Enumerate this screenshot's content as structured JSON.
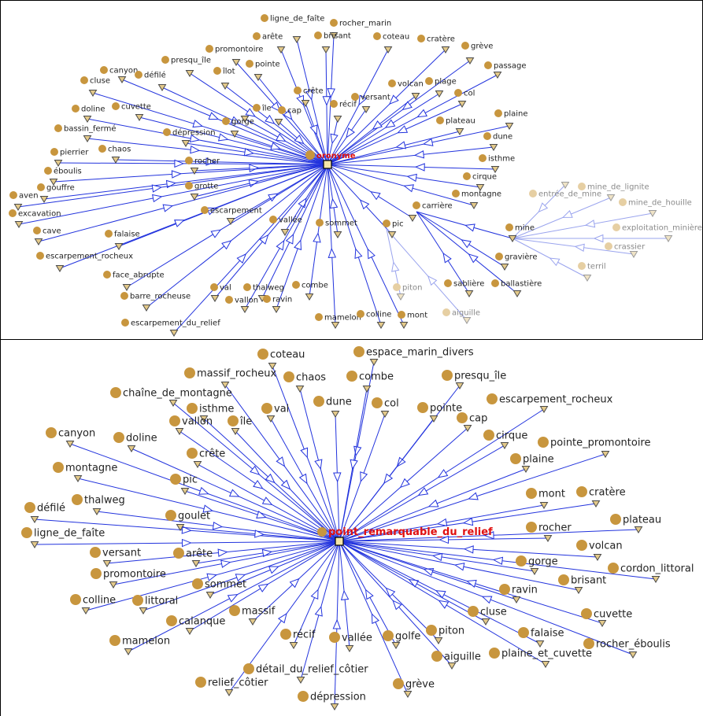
{
  "colors": {
    "node": "#c8963e",
    "node_faded": "#e6cfa3",
    "edge": "#2233dd",
    "edge_faded": "#9aa4ee",
    "hub_label": "#e01010",
    "label": "#222222",
    "label_faded": "#8a8a8a"
  },
  "icons": {
    "hub": "square-hub-icon",
    "leaf": "triangle-marker-icon",
    "node": "circle-node-icon"
  },
  "top": {
    "hub_label": "oronyme",
    "nodes": [
      "ligne_de_faîte",
      "rocher_marin",
      "arête",
      "brisant",
      "coteau",
      "cratère",
      "grève",
      "promontoire",
      "passage",
      "presqu_île",
      "canyon",
      "pointe",
      "îlot",
      "cluse",
      "défilé",
      "crête",
      "volcan",
      "plage",
      "col",
      "récif",
      "versant",
      "cap",
      "île",
      "cuvette",
      "doline",
      "gorge",
      "plaine",
      "plateau",
      "dépression",
      "bassin_fermé",
      "dune",
      "chaos",
      "pierrier",
      "isthme",
      "rocher",
      "éboulis",
      "cirque",
      "gouffre",
      "grotte",
      "aven",
      "carrière",
      "montagne",
      "excavation",
      "escarpement",
      "vallée",
      "sommet",
      "pic",
      "cave",
      "falaise",
      "mine",
      "escarpement_rocheux",
      "gravière",
      "face_abrupte",
      "val",
      "thalweg",
      "combe",
      "ballastière",
      "sablière",
      "barre_rocheuse",
      "vallon",
      "ravin",
      "mamelon",
      "colline",
      "mont",
      "escarpement_du_relief"
    ],
    "faded_nodes": [
      "entrée_de_mine",
      "mine_de_lignite",
      "mine_de_houille",
      "exploitation_minière",
      "crassier",
      "terril",
      "piton",
      "aiguille"
    ]
  },
  "bottom": {
    "hub_label": "point_remarquable_du_relief",
    "nodes": [
      "coteau",
      "espace_marin_divers",
      "massif_rocheux",
      "chaos",
      "combe",
      "presqu_île",
      "chaîne_de_montagne",
      "escarpement_rocheux",
      "isthme",
      "val",
      "dune",
      "col",
      "pointe",
      "vallon",
      "île",
      "cap",
      "canyon",
      "doline",
      "cirque",
      "pointe_promontoire",
      "crête",
      "plaine",
      "montagne",
      "pic",
      "mont",
      "cratère",
      "thalweg",
      "défilé",
      "goulet",
      "plateau",
      "ligne_de_faîte",
      "rocher",
      "versant",
      "arête",
      "volcan",
      "promontoire",
      "gorge",
      "cordon_littoral",
      "sommet",
      "brisant",
      "colline",
      "littoral",
      "ravin",
      "massif",
      "cuvette",
      "calanque",
      "cluse",
      "falaise",
      "mamelon",
      "récif",
      "vallée",
      "golfe",
      "piton",
      "rocher_éboulis",
      "aiguille",
      "plaine_et_cuvette",
      "détail_du_relief_côtier",
      "relief_côtier",
      "grève",
      "dépression"
    ]
  }
}
